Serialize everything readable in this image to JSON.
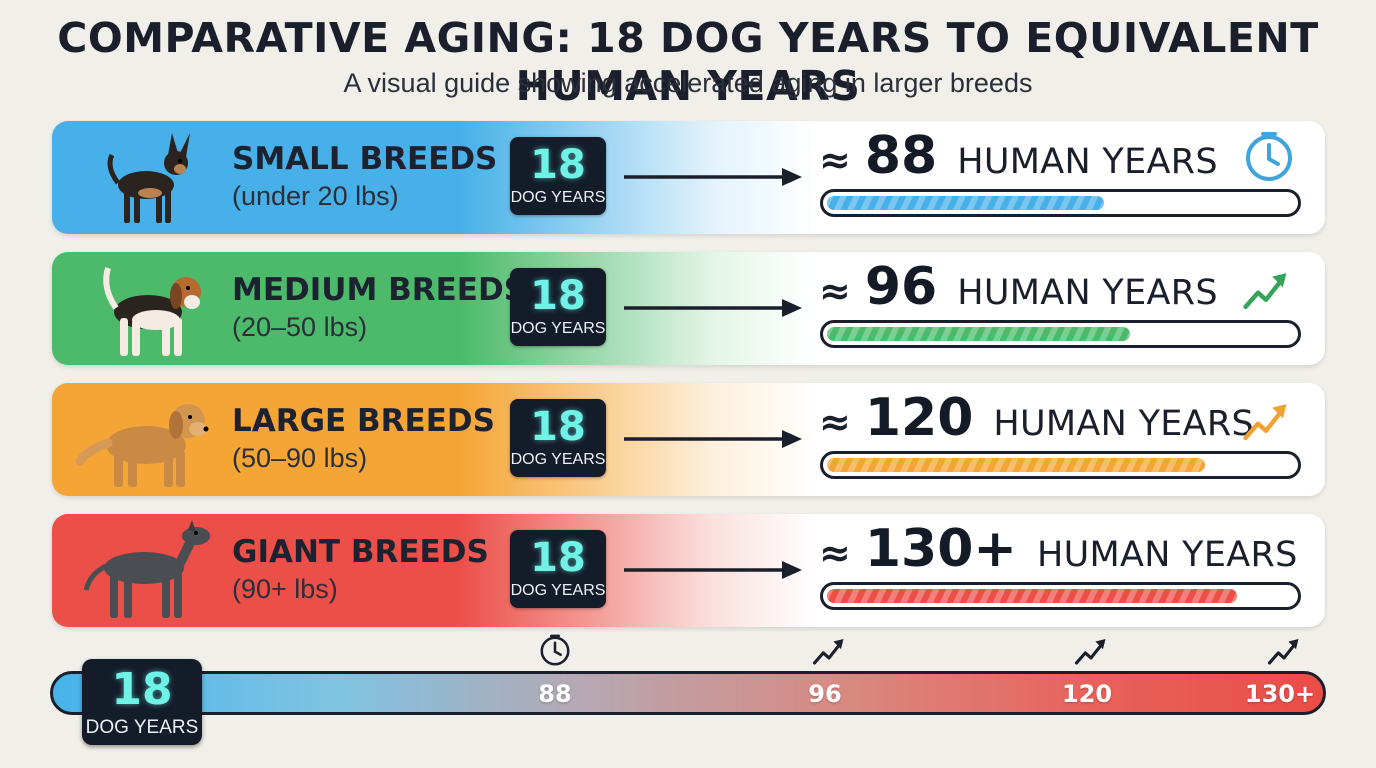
{
  "title": "COMPARATIVE AGING: 18 DOG YEARS TO EQUIVALENT HUMAN YEARS",
  "subtitle": "A visual guide showing accelerated aging in larger breeds",
  "approx_symbol": "≈",
  "chart_data": {
    "type": "bar",
    "orientation": "horizontal",
    "categories": [
      "SMALL BREEDS",
      "MEDIUM BREEDS",
      "LARGE BREEDS",
      "GIANT BREEDS"
    ],
    "weights": [
      "(under 20 lbs)",
      "(20–50 lbs)",
      "(50–90 lbs)",
      "(90+ lbs)"
    ],
    "dog_years": 18,
    "dog_years_label": "DOG YEARS",
    "values": [
      88,
      96,
      120,
      130
    ],
    "value_labels": [
      "88",
      "96",
      "120",
      "130+"
    ],
    "unit_label": "HUMAN YEARS",
    "xlim": [
      0,
      150
    ],
    "colors": [
      "#47b0e8",
      "#4cba6a",
      "#f5a535",
      "#ec4f48"
    ],
    "row_icons": [
      "clock-icon",
      "trend-up-icon",
      "trend-up-icon",
      ""
    ],
    "timeline": {
      "start_value": "18",
      "start_label": "DOG YEARS",
      "ticks": [
        "88",
        "96",
        "120",
        "130+"
      ],
      "tick_icons": [
        "clock-icon",
        "trend-up-icon",
        "trend-up-icon",
        "trend-up-icon"
      ]
    }
  }
}
